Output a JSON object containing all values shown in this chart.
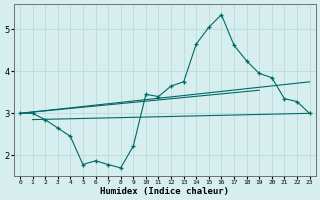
{
  "xlabel": "Humidex (Indice chaleur)",
  "bg_color": "#d6eeee",
  "grid_color": "#b8d8d8",
  "line_color": "#006868",
  "xlim": [
    -0.5,
    23.5
  ],
  "ylim": [
    1.5,
    5.6
  ],
  "yticks": [
    2,
    3,
    4,
    5
  ],
  "xticks": [
    0,
    1,
    2,
    3,
    4,
    5,
    6,
    7,
    8,
    9,
    10,
    11,
    12,
    13,
    14,
    15,
    16,
    17,
    18,
    19,
    20,
    21,
    22,
    23
  ],
  "line1_x": [
    0,
    1,
    2,
    3,
    4,
    5,
    6,
    7,
    8,
    9,
    10,
    11,
    12,
    13,
    14,
    15,
    16,
    17,
    18,
    19,
    20,
    21,
    22,
    23
  ],
  "line1_y": [
    3.0,
    3.0,
    2.85,
    2.65,
    2.45,
    1.78,
    1.87,
    1.78,
    1.7,
    2.22,
    3.45,
    3.4,
    3.65,
    3.75,
    4.65,
    5.05,
    5.35,
    4.62,
    4.25,
    3.95,
    3.85,
    3.35,
    3.28,
    3.0
  ],
  "line2_x": [
    0,
    23
  ],
  "line2_y": [
    3.0,
    3.75
  ],
  "line3_x": [
    0,
    19
  ],
  "line3_y": [
    3.0,
    3.55
  ],
  "line4_x": [
    1,
    23
  ],
  "line4_y": [
    2.85,
    3.0
  ]
}
